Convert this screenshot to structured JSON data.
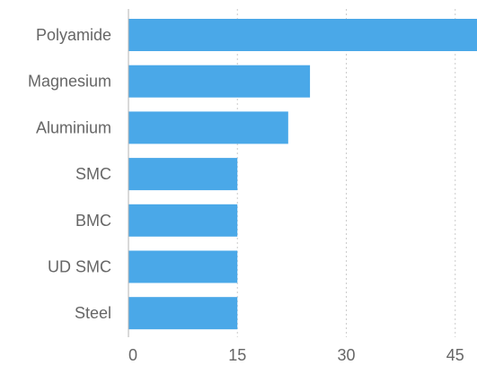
{
  "chart_data": {
    "type": "bar",
    "orientation": "horizontal",
    "categories": [
      "Polyamide",
      "Magnesium",
      "Aluminium",
      "SMC",
      "BMC",
      "UD SMC",
      "Steel"
    ],
    "values": [
      48,
      25,
      22,
      15,
      15,
      15,
      15
    ],
    "xlim": [
      0,
      48
    ],
    "xticks": [
      0,
      15,
      30,
      45
    ],
    "grid": true,
    "legend": "none",
    "colors": {
      "bar": "#4aa8e8",
      "label": "#666666",
      "grid": "#cccccc"
    }
  }
}
